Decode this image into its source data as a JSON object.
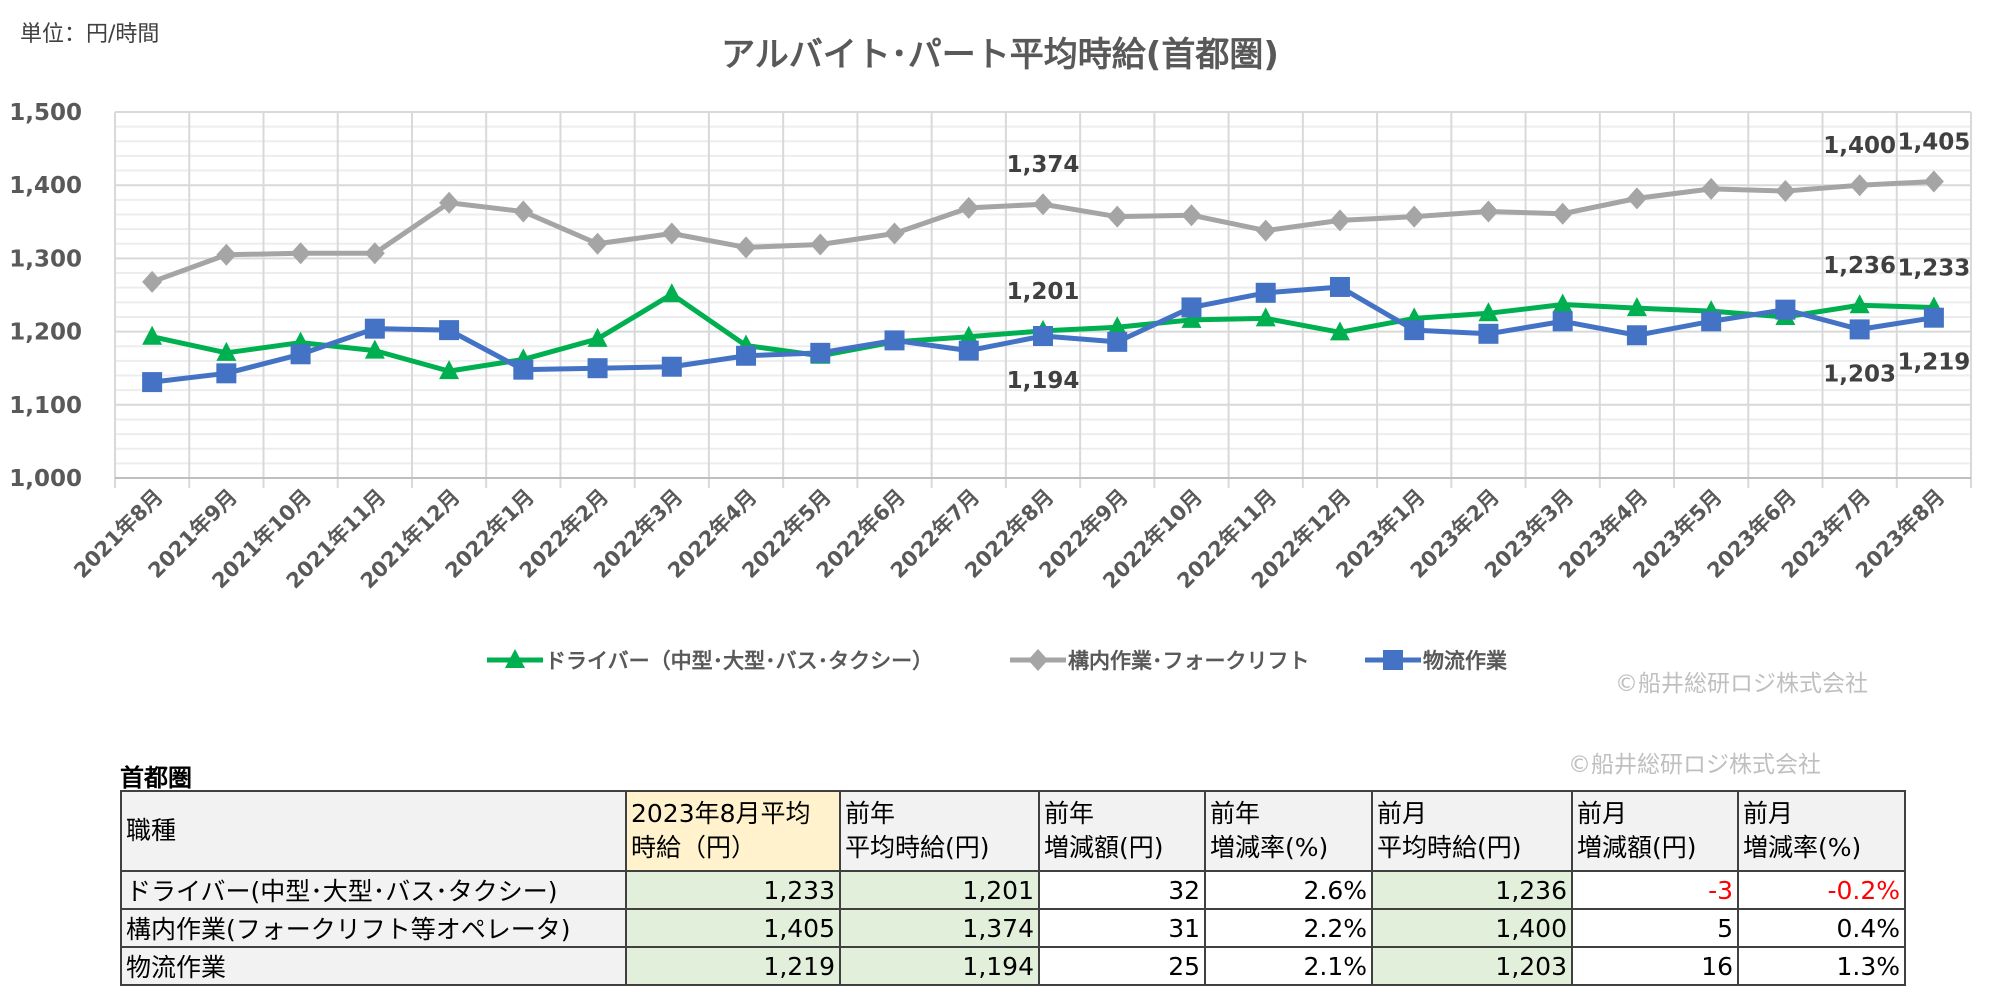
{
  "unit_label": "単位：円/時間",
  "copyright": "©船井総研ロジ株式会社",
  "colors": {
    "driver": "#00b050",
    "forklift": "#a5a5a5",
    "logistics": "#4472c4",
    "negative": "#ff0000",
    "highlight_header": "#fff2cc",
    "highlight_cell": "#e2efda"
  },
  "chart_data": {
    "type": "line",
    "title": "アルバイト･パート平均時給(首都圏)",
    "ylim": [
      1000,
      1500
    ],
    "yticks": [
      "1,000",
      "1,100",
      "1,200",
      "1,300",
      "1,400",
      "1,500"
    ],
    "ytick_values": [
      1000,
      1100,
      1200,
      1300,
      1400,
      1500
    ],
    "grid": true,
    "legend_position": "bottom",
    "categories": [
      "2021年8月",
      "2021年9月",
      "2021年10月",
      "2021年11月",
      "2021年12月",
      "2022年1月",
      "2022年2月",
      "2022年3月",
      "2022年4月",
      "2022年5月",
      "2022年6月",
      "2022年7月",
      "2022年8月",
      "2022年9月",
      "2022年10月",
      "2022年11月",
      "2022年12月",
      "2023年1月",
      "2023年2月",
      "2023年3月",
      "2023年4月",
      "2023年5月",
      "2023年6月",
      "2023年7月",
      "2023年8月"
    ],
    "series": [
      {
        "name": "ドライバー（中型･大型･バス･タクシー）",
        "key": "driver",
        "marker": "triangle",
        "values": [
          1193,
          1171,
          1185,
          1174,
          1146,
          1162,
          1190,
          1251,
          1181,
          1167,
          1186,
          1193,
          1201,
          1206,
          1216,
          1218,
          1199,
          1218,
          1225,
          1237,
          1232,
          1228,
          1220,
          1236,
          1233
        ],
        "labels": [
          {
            "index": 12,
            "text": "1,201",
            "pos": "above"
          },
          {
            "index": 23,
            "text": "1,236",
            "pos": "above"
          },
          {
            "index": 24,
            "text": "1,233",
            "pos": "above"
          }
        ]
      },
      {
        "name": "構内作業･フォークリフト",
        "key": "forklift",
        "marker": "diamond",
        "values": [
          1268,
          1305,
          1307,
          1307,
          1376,
          1364,
          1320,
          1334,
          1315,
          1319,
          1334,
          1369,
          1374,
          1357,
          1359,
          1338,
          1352,
          1357,
          1364,
          1361,
          1382,
          1395,
          1392,
          1400,
          1405
        ],
        "labels": [
          {
            "index": 12,
            "text": "1,374",
            "pos": "above"
          },
          {
            "index": 23,
            "text": "1,400",
            "pos": "above"
          },
          {
            "index": 24,
            "text": "1,405",
            "pos": "above"
          }
        ]
      },
      {
        "name": "物流作業",
        "key": "logistics",
        "marker": "square",
        "values": [
          1131,
          1143,
          1169,
          1204,
          1202,
          1148,
          1150,
          1152,
          1167,
          1171,
          1188,
          1174,
          1194,
          1186,
          1233,
          1253,
          1261,
          1202,
          1197,
          1214,
          1195,
          1214,
          1230,
          1203,
          1219
        ],
        "labels": [
          {
            "index": 12,
            "text": "1,194",
            "pos": "below"
          },
          {
            "index": 23,
            "text": "1,203",
            "pos": "below"
          },
          {
            "index": 24,
            "text": "1,219",
            "pos": "below"
          }
        ]
      }
    ]
  },
  "table": {
    "region": "首都圏",
    "headers": [
      [
        "職種"
      ],
      [
        "2023年8月平均",
        "時給（円）"
      ],
      [
        "前年",
        "平均時給(円)"
      ],
      [
        "前年",
        "増減額(円)"
      ],
      [
        "前年",
        "増減率(%)"
      ],
      [
        "前月",
        "平均時給(円)"
      ],
      [
        "前月",
        "増減額(円)"
      ],
      [
        "前月",
        "増減率(%)"
      ]
    ],
    "rows": [
      [
        "ドライバー(中型･大型･バス･タクシー)",
        "1,233",
        "1,201",
        "32",
        "2.6%",
        "1,236",
        "-3",
        "-0.2%"
      ],
      [
        "構内作業(フォークリフト等オペレータ)",
        "1,405",
        "1,374",
        "31",
        "2.2%",
        "1,400",
        "5",
        "0.4%"
      ],
      [
        "物流作業",
        "1,219",
        "1,194",
        "25",
        "2.1%",
        "1,203",
        "16",
        "1.3%"
      ]
    ]
  }
}
